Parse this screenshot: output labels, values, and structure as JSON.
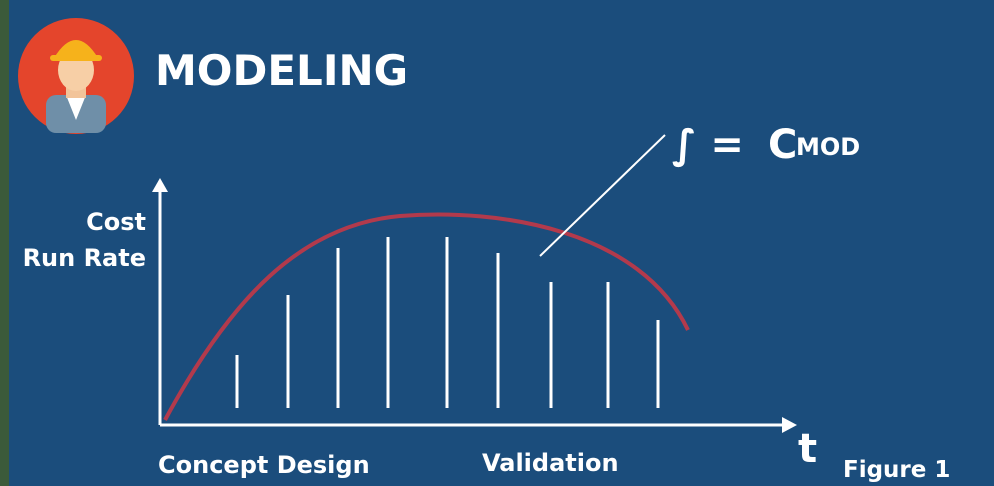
{
  "header": {
    "title": "MODELING"
  },
  "formula": {
    "symbol": "∫ =",
    "main": "C",
    "sub": "MOD"
  },
  "axes": {
    "y_label": [
      "Cost",
      "Run Rate"
    ],
    "x_label": "t"
  },
  "phases": [
    "Concept Design",
    "Validation"
  ],
  "caption": "Figure 1"
}
